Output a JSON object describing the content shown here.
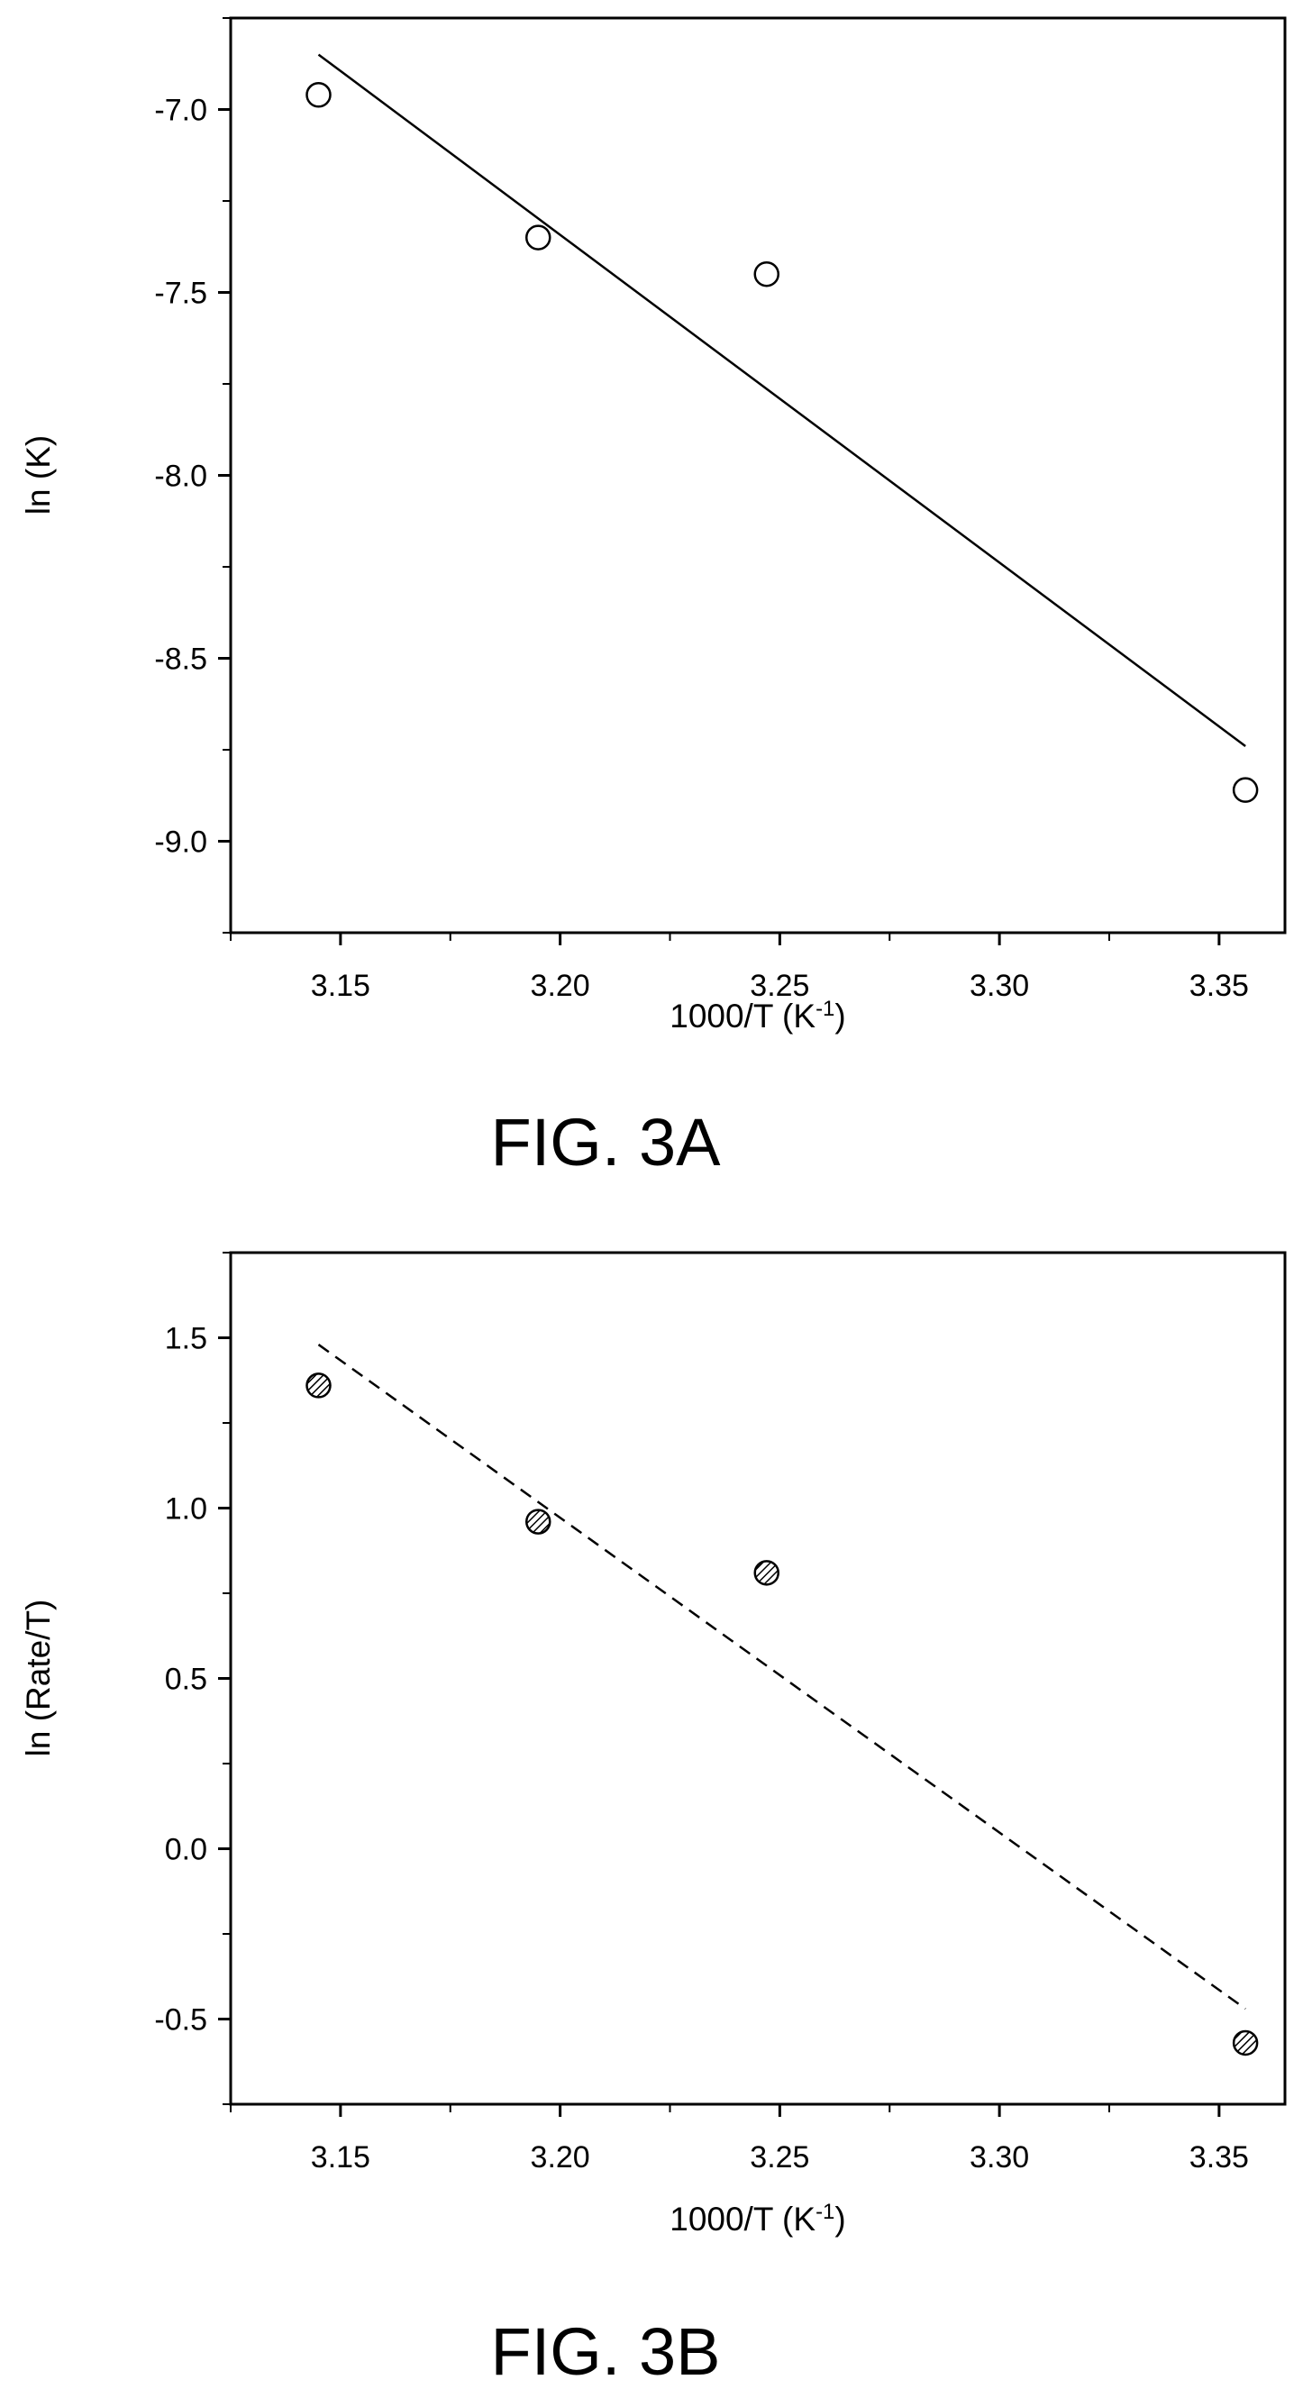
{
  "chart_data": [
    {
      "type": "scatter",
      "caption": "FIG. 3A",
      "xlabel": "1000/T (K",
      "xlabel_sup": "-1",
      "xlabel_close": ")",
      "ylabel": "ln (K)",
      "xlim": [
        3.125,
        3.365
      ],
      "ylim": [
        -9.25,
        -6.75
      ],
      "xticks": [
        3.15,
        3.2,
        3.25,
        3.3,
        3.35
      ],
      "xtick_labels": [
        "3.15",
        "3.20",
        "3.25",
        "3.30",
        "3.35"
      ],
      "yticks": [
        -7.0,
        -7.5,
        -8.0,
        -8.5,
        -9.0
      ],
      "ytick_labels": [
        "-7.0",
        "-7.5",
        "-8.0",
        "-8.5",
        "-9.0"
      ],
      "points": [
        {
          "x": 3.145,
          "y": -6.96
        },
        {
          "x": 3.195,
          "y": -7.35
        },
        {
          "x": 3.247,
          "y": -7.45
        },
        {
          "x": 3.356,
          "y": -8.86
        }
      ],
      "fit_line": {
        "x": [
          3.145,
          3.356
        ],
        "y": [
          -6.85,
          -8.74
        ],
        "style": "solid"
      },
      "marker": "open-circle",
      "grid": false
    },
    {
      "type": "scatter",
      "caption": "FIG. 3B",
      "xlabel": "1000/T (K",
      "xlabel_sup": "-1",
      "xlabel_close": ")",
      "ylabel": "ln (Rate/T)",
      "xlim": [
        3.125,
        3.365
      ],
      "ylim": [
        -0.75,
        1.75
      ],
      "xticks": [
        3.15,
        3.2,
        3.25,
        3.3,
        3.35
      ],
      "xtick_labels": [
        "3.15",
        "3.20",
        "3.25",
        "3.30",
        "3.35"
      ],
      "yticks": [
        1.5,
        1.0,
        0.5,
        0.0,
        -0.5
      ],
      "ytick_labels": [
        "1.5",
        "1.0",
        "0.5",
        "0.0",
        "-0.5"
      ],
      "points": [
        {
          "x": 3.145,
          "y": 1.36
        },
        {
          "x": 3.195,
          "y": 0.96
        },
        {
          "x": 3.247,
          "y": 0.81
        },
        {
          "x": 3.356,
          "y": -0.57
        }
      ],
      "fit_line": {
        "x": [
          3.145,
          3.356
        ],
        "y": [
          1.48,
          -0.47
        ],
        "style": "dashed"
      },
      "marker": "hatched-circle",
      "grid": false
    }
  ]
}
